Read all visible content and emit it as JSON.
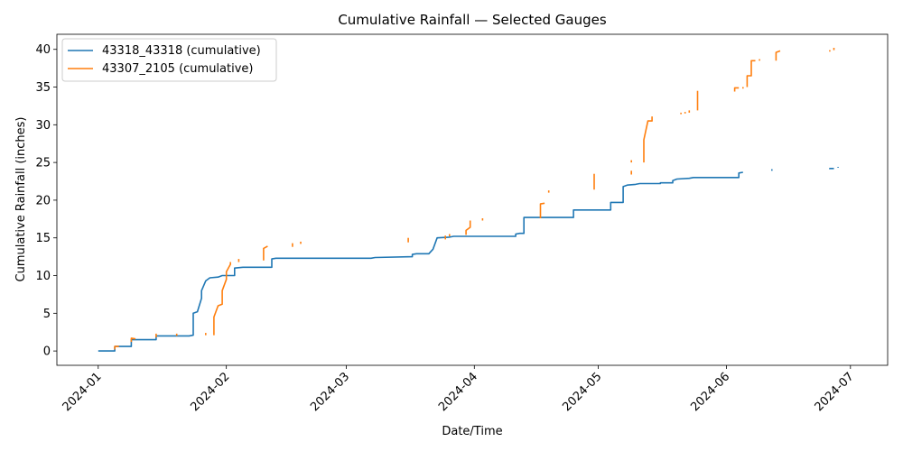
{
  "chart_data": {
    "type": "line",
    "title": "Cumulative Rainfall — Selected Gauges",
    "xlabel": "Date/Time",
    "ylabel": "Cumulative Rainfall (inches)",
    "xlim": [
      "2023-12-22",
      "2024-07-10"
    ],
    "ylim": [
      -1.9,
      42
    ],
    "xticks": [
      "2024-01",
      "2024-02",
      "2024-03",
      "2024-04",
      "2024-05",
      "2024-06",
      "2024-07"
    ],
    "yticks": [
      0,
      5,
      10,
      15,
      20,
      25,
      30,
      35,
      40
    ],
    "legend_position": "top-left",
    "grid": false,
    "series": [
      {
        "name": "43318_43318 (cumulative)",
        "color": "#1f77b4",
        "segments": [
          [
            [
              "2024-01-01",
              0
            ],
            [
              "2024-01-05",
              0
            ],
            [
              "2024-01-05",
              0.6
            ],
            [
              "2024-01-09",
              0.6
            ],
            [
              "2024-01-09",
              1.5
            ],
            [
              "2024-01-15",
              1.5
            ],
            [
              "2024-01-15",
              2.0
            ],
            [
              "2024-01-23",
              2.0
            ],
            [
              "2024-01-24",
              2.1
            ],
            [
              "2024-01-24",
              4.8
            ],
            [
              "2024-01-24",
              5.0
            ],
            [
              "2024-01-25",
              5.2
            ],
            [
              "2024-01-26",
              7.0
            ],
            [
              "2024-01-26",
              8.0
            ],
            [
              "2024-01-27",
              9.3
            ],
            [
              "2024-01-28",
              9.7
            ],
            [
              "2024-01-30",
              9.8
            ],
            [
              "2024-01-31",
              10.0
            ],
            [
              "2024-02-03",
              10.0
            ],
            [
              "2024-02-03",
              11.0
            ],
            [
              "2024-02-05",
              11.1
            ],
            [
              "2024-02-12",
              11.1
            ],
            [
              "2024-02-12",
              12.2
            ],
            [
              "2024-02-13",
              12.3
            ],
            [
              "2024-03-07",
              12.3
            ],
            [
              "2024-03-08",
              12.4
            ],
            [
              "2024-03-17",
              12.5
            ],
            [
              "2024-03-17",
              12.8
            ],
            [
              "2024-03-18",
              12.9
            ],
            [
              "2024-03-21",
              12.9
            ],
            [
              "2024-03-22",
              13.5
            ],
            [
              "2024-03-23",
              15.0
            ],
            [
              "2024-03-26",
              15.1
            ],
            [
              "2024-03-27",
              15.2
            ],
            [
              "2024-04-11",
              15.2
            ],
            [
              "2024-04-11",
              15.5
            ],
            [
              "2024-04-12",
              15.6
            ],
            [
              "2024-04-13",
              15.6
            ],
            [
              "2024-04-13",
              17.7
            ],
            [
              "2024-04-25",
              17.7
            ],
            [
              "2024-04-25",
              18.7
            ],
            [
              "2024-05-04",
              18.7
            ],
            [
              "2024-05-04",
              19.7
            ],
            [
              "2024-05-07",
              19.7
            ],
            [
              "2024-05-07",
              21.8
            ],
            [
              "2024-05-08",
              22.0
            ],
            [
              "2024-05-10",
              22.1
            ],
            [
              "2024-05-11",
              22.2
            ],
            [
              "2024-05-16",
              22.2
            ],
            [
              "2024-05-16",
              22.3
            ],
            [
              "2024-05-19",
              22.3
            ],
            [
              "2024-05-19",
              22.6
            ],
            [
              "2024-05-20",
              22.8
            ],
            [
              "2024-05-23",
              22.9
            ],
            [
              "2024-05-24",
              23.0
            ],
            [
              "2024-06-04",
              23.0
            ],
            [
              "2024-06-04",
              23.6
            ],
            [
              "2024-06-05",
              23.7
            ]
          ],
          [
            [
              "2024-06-12",
              23.9
            ],
            [
              "2024-06-12",
              24.1
            ]
          ],
          [
            [
              "2024-06-26",
              24.1
            ],
            [
              "2024-06-26",
              24.2
            ],
            [
              "2024-06-27",
              24.2
            ]
          ],
          [
            [
              "2024-06-28",
              24.3
            ],
            [
              "2024-06-28",
              24.4
            ]
          ]
        ]
      },
      {
        "name": "43307_2105 (cumulative)",
        "color": "#ff7f0e",
        "segments": [
          [
            [
              "2024-01-05",
              0.2
            ],
            [
              "2024-01-05",
              0.6
            ],
            [
              "2024-01-06",
              0.6
            ]
          ],
          [
            [
              "2024-01-09",
              1.2
            ],
            [
              "2024-01-09",
              1.7
            ],
            [
              "2024-01-10",
              1.6
            ]
          ],
          [
            [
              "2024-01-15",
              1.8
            ],
            [
              "2024-01-15",
              2.3
            ]
          ],
          [
            [
              "2024-01-20",
              2.0
            ],
            [
              "2024-01-20",
              2.3
            ]
          ],
          [
            [
              "2024-01-27",
              2.1
            ],
            [
              "2024-01-27",
              2.4
            ]
          ],
          [
            [
              "2024-01-29",
              2.1
            ],
            [
              "2024-01-29",
              4.5
            ],
            [
              "2024-01-30",
              6.0
            ],
            [
              "2024-01-31",
              6.2
            ],
            [
              "2024-01-31",
              8.0
            ],
            [
              "2024-02-01",
              9.5
            ],
            [
              "2024-02-01",
              10.5
            ],
            [
              "2024-02-02",
              11.5
            ],
            [
              "2024-02-02",
              11.8
            ]
          ],
          [
            [
              "2024-02-04",
              11.8
            ],
            [
              "2024-02-04",
              12.2
            ]
          ],
          [
            [
              "2024-02-10",
              12.0
            ],
            [
              "2024-02-10",
              13.6
            ],
            [
              "2024-02-11",
              13.9
            ]
          ],
          [
            [
              "2024-02-17",
              13.8
            ],
            [
              "2024-02-17",
              14.3
            ]
          ],
          [
            [
              "2024-02-19",
              14.2
            ],
            [
              "2024-02-19",
              14.5
            ]
          ],
          [
            [
              "2024-03-16",
              14.4
            ],
            [
              "2024-03-16",
              15.0
            ]
          ],
          [
            [
              "2024-03-25",
              14.8
            ],
            [
              "2024-03-25",
              15.3
            ]
          ],
          [
            [
              "2024-03-26",
              15.2
            ],
            [
              "2024-03-26",
              15.5
            ]
          ],
          [
            [
              "2024-03-30",
              15.4
            ],
            [
              "2024-03-30",
              16.0
            ],
            [
              "2024-03-31",
              16.4
            ],
            [
              "2024-03-31",
              17.3
            ]
          ],
          [
            [
              "2024-04-03",
              17.3
            ],
            [
              "2024-04-03",
              17.6
            ]
          ],
          [
            [
              "2024-04-17",
              17.6
            ],
            [
              "2024-04-17",
              19.5
            ],
            [
              "2024-04-18",
              19.6
            ]
          ],
          [
            [
              "2024-04-19",
              21.0
            ],
            [
              "2024-04-19",
              21.3
            ]
          ],
          [
            [
              "2024-04-30",
              21.4
            ],
            [
              "2024-04-30",
              23.5
            ]
          ],
          [
            [
              "2024-05-09",
              23.4
            ],
            [
              "2024-05-09",
              23.9
            ]
          ],
          [
            [
              "2024-05-09",
              25.0
            ],
            [
              "2024-05-09",
              25.3
            ]
          ],
          [
            [
              "2024-05-12",
              25.0
            ],
            [
              "2024-05-12",
              28.0
            ],
            [
              "2024-05-13",
              30.5
            ],
            [
              "2024-05-14",
              30.5
            ],
            [
              "2024-05-14",
              31.1
            ]
          ],
          [
            [
              "2024-05-21",
              31.4
            ],
            [
              "2024-05-21",
              31.6
            ]
          ],
          [
            [
              "2024-05-22",
              31.5
            ],
            [
              "2024-05-22",
              31.7
            ]
          ],
          [
            [
              "2024-05-23",
              31.6
            ],
            [
              "2024-05-23",
              31.9
            ]
          ],
          [
            [
              "2024-05-25",
              31.9
            ],
            [
              "2024-05-25",
              34.5
            ]
          ],
          [
            [
              "2024-06-03",
              34.4
            ],
            [
              "2024-06-03",
              34.9
            ],
            [
              "2024-06-04",
              34.9
            ]
          ],
          [
            [
              "2024-06-05",
              34.8
            ],
            [
              "2024-06-05",
              35.0
            ]
          ],
          [
            [
              "2024-06-06",
              35.0
            ],
            [
              "2024-06-06",
              36.5
            ],
            [
              "2024-06-07",
              36.5
            ],
            [
              "2024-06-07",
              38.5
            ],
            [
              "2024-06-08",
              38.5
            ]
          ],
          [
            [
              "2024-06-09",
              38.5
            ],
            [
              "2024-06-09",
              38.7
            ]
          ],
          [
            [
              "2024-06-13",
              38.5
            ],
            [
              "2024-06-13",
              39.6
            ],
            [
              "2024-06-14",
              39.8
            ]
          ],
          [
            [
              "2024-06-26",
              39.7
            ],
            [
              "2024-06-26",
              39.9
            ]
          ],
          [
            [
              "2024-06-27",
              39.9
            ],
            [
              "2024-06-27",
              40.2
            ]
          ]
        ]
      }
    ]
  }
}
